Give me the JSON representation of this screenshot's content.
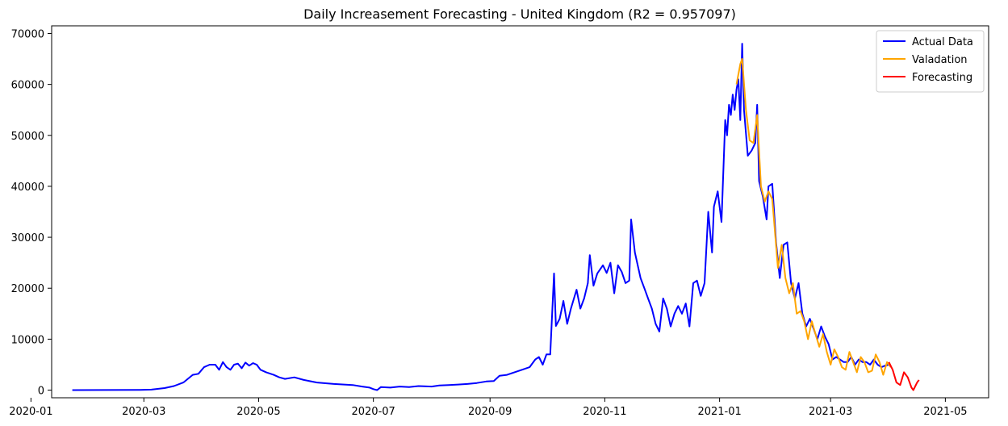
{
  "chart_data": {
    "type": "line",
    "title": "Daily Increasement Forecasting - United Kingdom (R2 = 0.957097)",
    "xlabel": "",
    "ylabel": "",
    "xlim": [
      "2020-01-12",
      "2021-05-24"
    ],
    "ylim": [
      -1500,
      71500
    ],
    "x_ticks": [
      "2020-01",
      "2020-03",
      "2020-05",
      "2020-07",
      "2020-09",
      "2020-11",
      "2021-01",
      "2021-03",
      "2021-05"
    ],
    "y_ticks": [
      0,
      10000,
      20000,
      30000,
      40000,
      50000,
      60000,
      70000
    ],
    "legend_position": "top-right",
    "grid": false,
    "series": [
      {
        "name": "Actual Data",
        "color": "#0000ff",
        "points": [
          [
            "2020-01-23",
            0
          ],
          [
            "2020-02-28",
            50
          ],
          [
            "2020-03-05",
            100
          ],
          [
            "2020-03-12",
            400
          ],
          [
            "2020-03-17",
            800
          ],
          [
            "2020-03-22",
            1500
          ],
          [
            "2020-03-27",
            3000
          ],
          [
            "2020-03-30",
            3200
          ],
          [
            "2020-04-02",
            4500
          ],
          [
            "2020-04-05",
            5000
          ],
          [
            "2020-04-08",
            5000
          ],
          [
            "2020-04-10",
            4000
          ],
          [
            "2020-04-12",
            5500
          ],
          [
            "2020-04-14",
            4500
          ],
          [
            "2020-04-16",
            4000
          ],
          [
            "2020-04-18",
            5000
          ],
          [
            "2020-04-20",
            5200
          ],
          [
            "2020-04-22",
            4300
          ],
          [
            "2020-04-24",
            5400
          ],
          [
            "2020-04-26",
            4800
          ],
          [
            "2020-04-28",
            5300
          ],
          [
            "2020-04-30",
            5000
          ],
          [
            "2020-05-02",
            4000
          ],
          [
            "2020-05-05",
            3500
          ],
          [
            "2020-05-09",
            3000
          ],
          [
            "2020-05-12",
            2500
          ],
          [
            "2020-05-15",
            2200
          ],
          [
            "2020-05-20",
            2500
          ],
          [
            "2020-05-25",
            2000
          ],
          [
            "2020-06-01",
            1500
          ],
          [
            "2020-06-10",
            1200
          ],
          [
            "2020-06-20",
            1000
          ],
          [
            "2020-06-25",
            700
          ],
          [
            "2020-06-29",
            500
          ],
          [
            "2020-07-01",
            200
          ],
          [
            "2020-07-03",
            0
          ],
          [
            "2020-07-05",
            600
          ],
          [
            "2020-07-10",
            500
          ],
          [
            "2020-07-15",
            700
          ],
          [
            "2020-07-20",
            600
          ],
          [
            "2020-07-25",
            800
          ],
          [
            "2020-08-01",
            700
          ],
          [
            "2020-08-05",
            900
          ],
          [
            "2020-08-10",
            1000
          ],
          [
            "2020-08-15",
            1100
          ],
          [
            "2020-08-20",
            1200
          ],
          [
            "2020-08-25",
            1400
          ],
          [
            "2020-08-30",
            1700
          ],
          [
            "2020-09-03",
            1800
          ],
          [
            "2020-09-06",
            2800
          ],
          [
            "2020-09-10",
            3000
          ],
          [
            "2020-09-14",
            3500
          ],
          [
            "2020-09-18",
            4000
          ],
          [
            "2020-09-22",
            4500
          ],
          [
            "2020-09-25",
            6000
          ],
          [
            "2020-09-27",
            6500
          ],
          [
            "2020-09-29",
            5000
          ],
          [
            "2020-10-01",
            7000
          ],
          [
            "2020-10-03",
            7000
          ],
          [
            "2020-10-05",
            22900
          ],
          [
            "2020-10-06",
            12600
          ],
          [
            "2020-10-08",
            14000
          ],
          [
            "2020-10-10",
            17500
          ],
          [
            "2020-10-12",
            13000
          ],
          [
            "2020-10-14",
            16000
          ],
          [
            "2020-10-17",
            19700
          ],
          [
            "2020-10-19",
            16000
          ],
          [
            "2020-10-21",
            18000
          ],
          [
            "2020-10-23",
            21000
          ],
          [
            "2020-10-24",
            26500
          ],
          [
            "2020-10-26",
            20500
          ],
          [
            "2020-10-28",
            22900
          ],
          [
            "2020-10-31",
            24500
          ],
          [
            "2020-11-02",
            23000
          ],
          [
            "2020-11-04",
            25000
          ],
          [
            "2020-11-06",
            19000
          ],
          [
            "2020-11-08",
            24500
          ],
          [
            "2020-11-10",
            23200
          ],
          [
            "2020-11-12",
            21000
          ],
          [
            "2020-11-14",
            21500
          ],
          [
            "2020-11-15",
            33500
          ],
          [
            "2020-11-17",
            27000
          ],
          [
            "2020-11-20",
            22000
          ],
          [
            "2020-11-22",
            20000
          ],
          [
            "2020-11-24",
            18000
          ],
          [
            "2020-11-26",
            16000
          ],
          [
            "2020-11-28",
            13000
          ],
          [
            "2020-11-30",
            11500
          ],
          [
            "2020-12-02",
            18000
          ],
          [
            "2020-12-04",
            16000
          ],
          [
            "2020-12-06",
            12500
          ],
          [
            "2020-12-08",
            15000
          ],
          [
            "2020-12-10",
            16500
          ],
          [
            "2020-12-12",
            15000
          ],
          [
            "2020-12-14",
            17000
          ],
          [
            "2020-12-16",
            12500
          ],
          [
            "2020-12-18",
            21000
          ],
          [
            "2020-12-20",
            21500
          ],
          [
            "2020-12-22",
            18500
          ],
          [
            "2020-12-24",
            21000
          ],
          [
            "2020-12-26",
            35000
          ],
          [
            "2020-12-28",
            27000
          ],
          [
            "2020-12-29",
            36000
          ],
          [
            "2020-12-31",
            39000
          ],
          [
            "2021-01-02",
            33000
          ],
          [
            "2021-01-04",
            53000
          ],
          [
            "2021-01-05",
            50000
          ],
          [
            "2021-01-06",
            56000
          ],
          [
            "2021-01-07",
            54000
          ],
          [
            "2021-01-08",
            58000
          ],
          [
            "2021-01-09",
            55000
          ],
          [
            "2021-01-10",
            59000
          ],
          [
            "2021-01-11",
            61000
          ],
          [
            "2021-01-12",
            53000
          ],
          [
            "2021-01-13",
            68000
          ],
          [
            "2021-01-14",
            55000
          ],
          [
            "2021-01-16",
            46000
          ],
          [
            "2021-01-18",
            47000
          ],
          [
            "2021-01-20",
            48500
          ],
          [
            "2021-01-21",
            56000
          ],
          [
            "2021-01-22",
            41000
          ],
          [
            "2021-01-24",
            38000
          ],
          [
            "2021-01-26",
            33500
          ],
          [
            "2021-01-27",
            40000
          ],
          [
            "2021-01-29",
            40500
          ],
          [
            "2021-01-31",
            29000
          ],
          [
            "2021-02-02",
            22000
          ],
          [
            "2021-02-04",
            28500
          ],
          [
            "2021-02-06",
            29000
          ],
          [
            "2021-02-08",
            21000
          ],
          [
            "2021-02-10",
            18000
          ],
          [
            "2021-02-12",
            21000
          ],
          [
            "2021-02-14",
            15000
          ],
          [
            "2021-02-16",
            12500
          ],
          [
            "2021-02-18",
            14000
          ],
          [
            "2021-02-20",
            12000
          ],
          [
            "2021-02-22",
            10000
          ],
          [
            "2021-02-24",
            12500
          ],
          [
            "2021-02-26",
            10500
          ],
          [
            "2021-02-28",
            9000
          ],
          [
            "2021-03-02",
            6000
          ],
          [
            "2021-03-04",
            6500
          ],
          [
            "2021-03-06",
            6000
          ],
          [
            "2021-03-08",
            5500
          ],
          [
            "2021-03-10",
            5500
          ],
          [
            "2021-03-12",
            6500
          ],
          [
            "2021-03-14",
            5000
          ],
          [
            "2021-03-16",
            6000
          ],
          [
            "2021-03-18",
            5500
          ],
          [
            "2021-03-20",
            5500
          ],
          [
            "2021-03-22",
            5000
          ],
          [
            "2021-03-24",
            6000
          ],
          [
            "2021-03-26",
            5000
          ],
          [
            "2021-03-28",
            4500
          ],
          [
            "2021-03-30",
            4800
          ],
          [
            "2021-04-01",
            5000
          ]
        ]
      },
      {
        "name": "Valadation",
        "color": "#ffa500",
        "points": [
          [
            "2021-01-10",
            60000
          ],
          [
            "2021-01-12",
            64000
          ],
          [
            "2021-01-13",
            65000
          ],
          [
            "2021-01-15",
            55000
          ],
          [
            "2021-01-17",
            49000
          ],
          [
            "2021-01-19",
            48500
          ],
          [
            "2021-01-21",
            54000
          ],
          [
            "2021-01-23",
            40000
          ],
          [
            "2021-01-25",
            37000
          ],
          [
            "2021-01-27",
            39000
          ],
          [
            "2021-01-29",
            37500
          ],
          [
            "2021-02-01",
            24000
          ],
          [
            "2021-02-03",
            28500
          ],
          [
            "2021-02-05",
            22000
          ],
          [
            "2021-02-07",
            19000
          ],
          [
            "2021-02-09",
            21000
          ],
          [
            "2021-02-11",
            15000
          ],
          [
            "2021-02-13",
            15500
          ],
          [
            "2021-02-15",
            13500
          ],
          [
            "2021-02-17",
            10000
          ],
          [
            "2021-02-19",
            13500
          ],
          [
            "2021-02-21",
            11000
          ],
          [
            "2021-02-23",
            8500
          ],
          [
            "2021-02-25",
            11000
          ],
          [
            "2021-02-27",
            7500
          ],
          [
            "2021-03-01",
            5000
          ],
          [
            "2021-03-03",
            8000
          ],
          [
            "2021-03-05",
            6500
          ],
          [
            "2021-03-07",
            4500
          ],
          [
            "2021-03-09",
            4000
          ],
          [
            "2021-03-11",
            7500
          ],
          [
            "2021-03-13",
            5500
          ],
          [
            "2021-03-15",
            3500
          ],
          [
            "2021-03-17",
            6500
          ],
          [
            "2021-03-19",
            5500
          ],
          [
            "2021-03-21",
            3500
          ],
          [
            "2021-03-23",
            3800
          ],
          [
            "2021-03-25",
            7000
          ],
          [
            "2021-03-27",
            5500
          ],
          [
            "2021-03-29",
            3000
          ],
          [
            "2021-03-31",
            5500
          ],
          [
            "2021-04-02",
            4500
          ]
        ]
      },
      {
        "name": "Forecasting",
        "color": "#ff0000",
        "points": [
          [
            "2021-04-01",
            5500
          ],
          [
            "2021-04-03",
            4000
          ],
          [
            "2021-04-05",
            1500
          ],
          [
            "2021-04-07",
            1000
          ],
          [
            "2021-04-09",
            3500
          ],
          [
            "2021-04-11",
            2500
          ],
          [
            "2021-04-13",
            500
          ],
          [
            "2021-04-14",
            0
          ],
          [
            "2021-04-16",
            1500
          ],
          [
            "2021-04-17",
            2000
          ]
        ]
      }
    ]
  }
}
